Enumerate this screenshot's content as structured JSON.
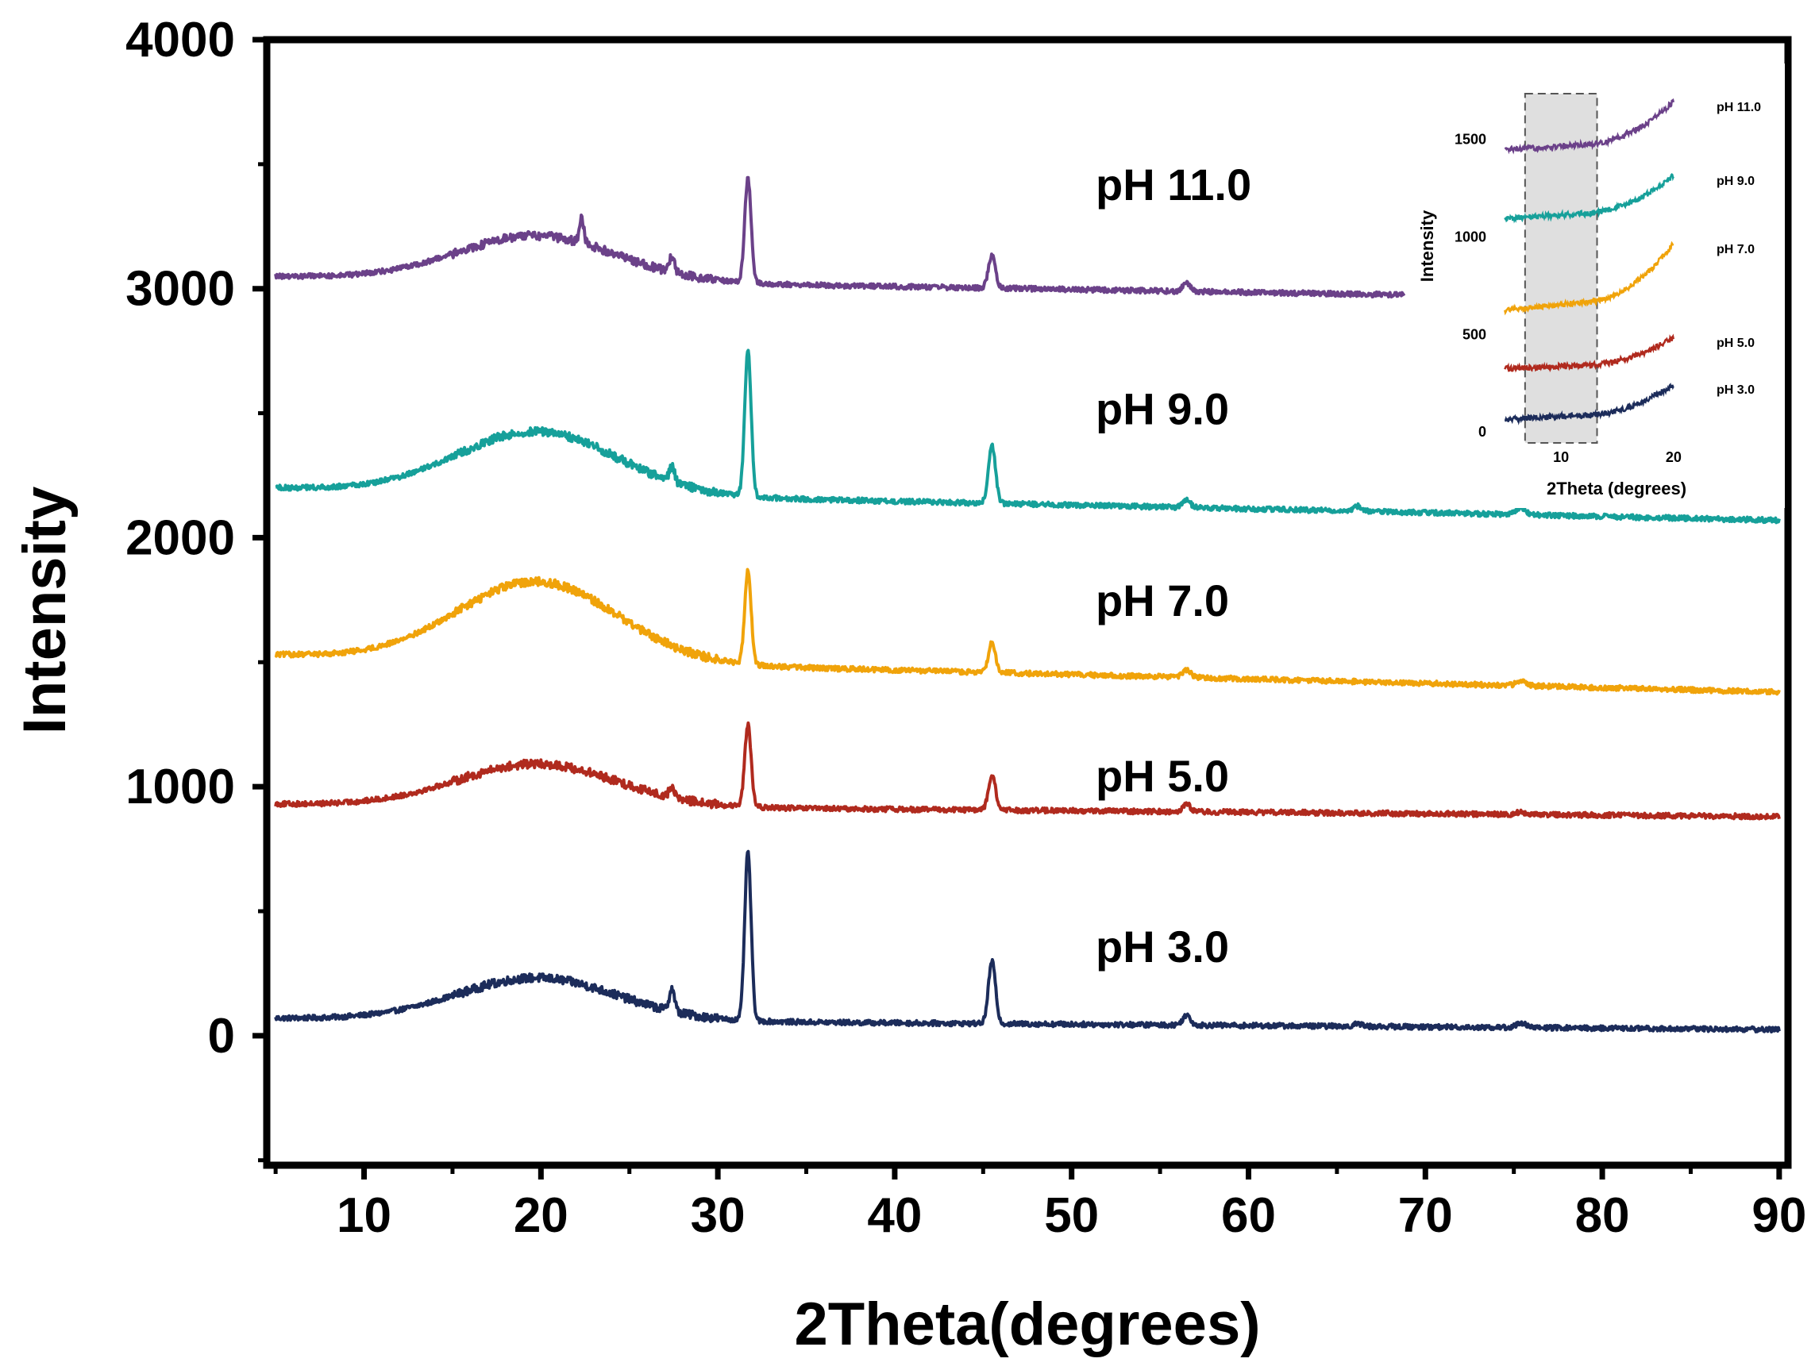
{
  "chart_data": {
    "type": "line",
    "title": "",
    "xlabel": "2Theta(degrees)",
    "ylabel": "Intensity",
    "xlim": [
      4.5,
      90.5
    ],
    "ylim": [
      -520,
      4000
    ],
    "xticks": [
      10,
      20,
      30,
      40,
      50,
      60,
      70,
      80,
      90
    ],
    "yticks": [
      0,
      1000,
      2000,
      3000,
      4000
    ],
    "x_range": [
      5,
      90
    ],
    "peaks": [
      {
        "x": 19.8,
        "width": 4.5,
        "kind": "broad"
      },
      {
        "x": 22.3,
        "width": 0.12
      },
      {
        "x": 27.4,
        "width": 0.15
      },
      {
        "x": 31.7,
        "width": 0.18
      },
      {
        "x": 45.5,
        "width": 0.2
      },
      {
        "x": 56.5,
        "width": 0.22
      },
      {
        "x": 66.2,
        "width": 0.25
      },
      {
        "x": 75.4,
        "width": 0.25
      }
    ],
    "series": [
      {
        "name": "pH 3.0",
        "color": "#1c2c5a",
        "x_end": 90,
        "baseline_start": 70,
        "baseline_end": 25,
        "peak_heights": [
          170,
          0,
          90,
          680,
          250,
          40,
          10,
          20
        ]
      },
      {
        "name": "pH 5.0",
        "color": "#b02a1e",
        "x_end": 90,
        "baseline_start": 930,
        "baseline_end": 880,
        "peak_heights": [
          170,
          0,
          40,
          330,
          140,
          30,
          0,
          10
        ]
      },
      {
        "name": "pH 7.0",
        "color": "#f0a30a",
        "x_end": 90,
        "baseline_start": 1530,
        "baseline_end": 1380,
        "peak_heights": [
          320,
          0,
          0,
          380,
          120,
          30,
          0,
          20
        ]
      },
      {
        "name": "pH 9.0",
        "color": "#16a09a",
        "x_end": 90,
        "baseline_start": 2200,
        "baseline_end": 2070,
        "peak_heights": [
          250,
          0,
          60,
          590,
          230,
          30,
          20,
          30
        ]
      },
      {
        "name": "pH 11.0",
        "color": "#6b4189",
        "x_end": 68.8,
        "baseline_start": 3050,
        "baseline_end": 2950,
        "peak_heights": [
          180,
          100,
          60,
          420,
          130,
          30,
          0,
          0
        ]
      }
    ],
    "inset": {
      "xlabel": "2Theta (degrees)",
      "ylabel": "Intensity",
      "xlim": [
        4.2,
        21
      ],
      "ylim": [
        -40,
        1860
      ],
      "xticks": [
        10,
        20
      ],
      "yticks": [
        0,
        500,
        1000,
        1500
      ],
      "x_range": [
        5,
        20
      ],
      "highlight_range": [
        6.8,
        13.2
      ],
      "series": [
        {
          "name": "pH 3.0",
          "start": 60,
          "end": 240
        },
        {
          "name": "pH 5.0",
          "start": 320,
          "end": 480
        },
        {
          "name": "pH 7.0",
          "start": 620,
          "end": 960
        },
        {
          "name": "pH 9.0",
          "start": 1090,
          "end": 1310
        },
        {
          "name": "pH 11.0",
          "start": 1440,
          "end": 1690
        }
      ]
    }
  }
}
